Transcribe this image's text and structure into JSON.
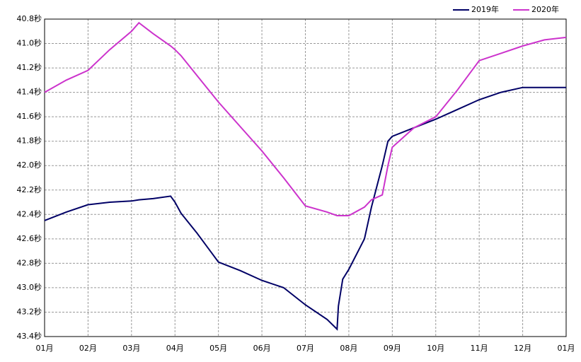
{
  "chart_data": {
    "type": "line",
    "x": [
      0,
      0.5,
      1,
      1.5,
      2,
      2.17,
      2.5,
      2.9,
      3,
      3.14,
      3.5,
      4,
      4.5,
      5,
      5.5,
      6,
      6.5,
      6.73,
      6.76,
      6.86,
      7,
      7.36,
      7.52,
      7.77,
      7.9,
      8,
      8.5,
      9,
      9.5,
      10,
      10.5,
      11,
      11.5,
      12
    ],
    "series": [
      {
        "name": "2019年",
        "color": "#000066",
        "values": [
          42.45,
          42.38,
          42.32,
          42.3,
          42.29,
          42.28,
          42.27,
          42.25,
          42.3,
          42.39,
          42.55,
          42.79,
          42.86,
          42.94,
          43.0,
          43.14,
          43.26,
          43.34,
          43.15,
          42.93,
          42.85,
          42.6,
          42.34,
          42.0,
          41.8,
          41.76,
          41.69,
          41.62,
          41.54,
          41.46,
          41.4,
          41.36,
          41.36,
          41.36
        ]
      },
      {
        "name": "2020年",
        "color": "#cc33cc",
        "values": [
          41.4,
          41.3,
          41.22,
          41.05,
          40.9,
          40.83,
          40.92,
          41.02,
          41.05,
          41.1,
          41.26,
          41.48,
          41.68,
          41.88,
          42.1,
          42.33,
          42.38,
          42.41,
          42.41,
          42.41,
          42.41,
          42.34,
          42.28,
          42.24,
          42.0,
          41.85,
          41.69,
          41.6,
          41.38,
          41.14,
          41.08,
          41.02,
          40.97,
          40.95
        ]
      }
    ],
    "xlim": [
      0,
      12
    ],
    "xticks": [
      {
        "value": 0,
        "label": "01月"
      },
      {
        "value": 1,
        "label": "02月"
      },
      {
        "value": 2,
        "label": "03月"
      },
      {
        "value": 3,
        "label": "04月"
      },
      {
        "value": 4,
        "label": "05月"
      },
      {
        "value": 5,
        "label": "06月"
      },
      {
        "value": 6,
        "label": "07月"
      },
      {
        "value": 7,
        "label": "08月"
      },
      {
        "value": 8,
        "label": "09月"
      },
      {
        "value": 9,
        "label": "10月"
      },
      {
        "value": 10,
        "label": "11月"
      },
      {
        "value": 11,
        "label": "12月"
      },
      {
        "value": 12,
        "label": "01月"
      }
    ],
    "ylim": [
      40.8,
      43.4
    ],
    "y_inverted": true,
    "yticks": [
      {
        "value": 40.8,
        "label": "40.8秒"
      },
      {
        "value": 41.0,
        "label": "41.0秒"
      },
      {
        "value": 41.2,
        "label": "41.2秒"
      },
      {
        "value": 41.4,
        "label": "41.4秒"
      },
      {
        "value": 41.6,
        "label": "41.6秒"
      },
      {
        "value": 41.8,
        "label": "41.8秒"
      },
      {
        "value": 42.0,
        "label": "42.0秒"
      },
      {
        "value": 42.2,
        "label": "42.2秒"
      },
      {
        "value": 42.4,
        "label": "42.4秒"
      },
      {
        "value": 42.6,
        "label": "42.6秒"
      },
      {
        "value": 42.8,
        "label": "42.8秒"
      },
      {
        "value": 43.0,
        "label": "43.0秒"
      },
      {
        "value": 43.2,
        "label": "43.2秒"
      },
      {
        "value": 43.4,
        "label": "43.4秒"
      }
    ],
    "grid": true,
    "legend": "top-right"
  }
}
